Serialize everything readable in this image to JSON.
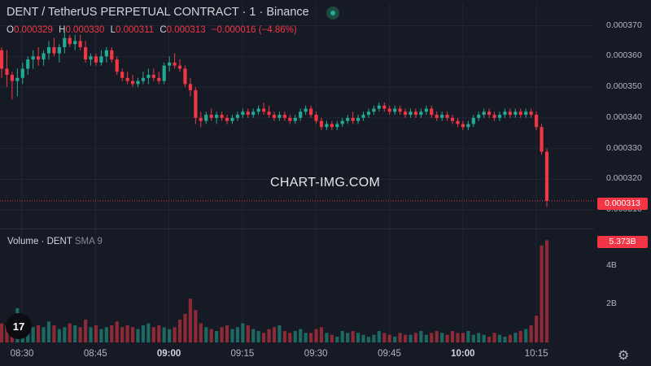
{
  "header": {
    "title": "DENT / TetherUS PERPETUAL CONTRACT · 1 · Binance",
    "ohlc": {
      "o_label": "O",
      "o": "0.000329",
      "h_label": "H",
      "h": "0.000330",
      "l_label": "L",
      "l": "0.000311",
      "c_label": "C",
      "c": "0.000313",
      "change": "−0.000016 (−4.86%)"
    }
  },
  "watermark": "CHART-IMG.COM",
  "volume_pane": {
    "label": "Volume · DENT",
    "indicator": "SMA 9",
    "last_value_tag": "5.373B"
  },
  "price_tag": "0.000313",
  "x_ticks": [
    "08:30",
    "08:45",
    "09:00",
    "09:15",
    "09:30",
    "09:45",
    "10:00",
    "10:15"
  ],
  "colors": {
    "up": "#22ab94",
    "down": "#f23645",
    "background": "#161a25",
    "grid": "#232632"
  },
  "icons": {
    "logo": "tradingview-logo-icon",
    "settings": "gear-icon",
    "live": "live-status-dot-icon"
  },
  "chart_data": {
    "type": "candlestick",
    "title": "DENT / TetherUS PERPETUAL CONTRACT · 1 · Binance",
    "interval": "1 minute",
    "x_start": "08:28",
    "x_step_minutes": 1,
    "y_ticks": [
      "0.000370",
      "0.000360",
      "0.000350",
      "0.000340",
      "0.000330",
      "0.000320",
      "0.000310"
    ],
    "ylim": [
      0.000309,
      0.000372
    ],
    "last_price": 0.000313,
    "candles": [
      [
        0.000362,
        0.000363,
        0.000353,
        0.000356
      ],
      [
        0.000356,
        0.000362,
        0.00035,
        0.000354
      ],
      [
        0.000354,
        0.000355,
        0.000346,
        0.000352
      ],
      [
        0.000352,
        0.000356,
        0.000347,
        0.000353
      ],
      [
        0.000353,
        0.000358,
        0.000351,
        0.000356
      ],
      [
        0.000356,
        0.00036,
        0.000354,
        0.000359
      ],
      [
        0.000359,
        0.000362,
        0.000356,
        0.00036
      ],
      [
        0.00036,
        0.000363,
        0.000357,
        0.000359
      ],
      [
        0.000359,
        0.000362,
        0.000357,
        0.000361
      ],
      [
        0.000361,
        0.000365,
        0.000359,
        0.000363
      ],
      [
        0.000363,
        0.000366,
        0.00036,
        0.000361
      ],
      [
        0.000361,
        0.000364,
        0.000358,
        0.000363
      ],
      [
        0.000363,
        0.000368,
        0.000361,
        0.000366
      ],
      [
        0.000366,
        0.000367,
        0.000363,
        0.000364
      ],
      [
        0.000364,
        0.000367,
        0.000362,
        0.000365
      ],
      [
        0.000365,
        0.000367,
        0.000362,
        0.000363
      ],
      [
        0.000363,
        0.000365,
        0.000358,
        0.000359
      ],
      [
        0.000359,
        0.000361,
        0.000357,
        0.00036
      ],
      [
        0.00036,
        0.000361,
        0.000357,
        0.000358
      ],
      [
        0.000358,
        0.000362,
        0.000357,
        0.00036
      ],
      [
        0.00036,
        0.000363,
        0.000358,
        0.000362
      ],
      [
        0.000362,
        0.000363,
        0.000358,
        0.000359
      ],
      [
        0.000359,
        0.00036,
        0.000354,
        0.000355
      ],
      [
        0.000355,
        0.000356,
        0.000352,
        0.000353
      ],
      [
        0.000353,
        0.000355,
        0.000351,
        0.000352
      ],
      [
        0.000352,
        0.000354,
        0.00035,
        0.000351
      ],
      [
        0.000351,
        0.000353,
        0.00035,
        0.000352
      ],
      [
        0.000352,
        0.000355,
        0.000351,
        0.000353
      ],
      [
        0.000353,
        0.000356,
        0.000351,
        0.000354
      ],
      [
        0.000354,
        0.000356,
        0.000352,
        0.000353
      ],
      [
        0.000353,
        0.000355,
        0.000351,
        0.000352
      ],
      [
        0.000352,
        0.000358,
        0.000351,
        0.000357
      ],
      [
        0.000357,
        0.00036,
        0.000355,
        0.000358
      ],
      [
        0.000358,
        0.000361,
        0.000356,
        0.000357
      ],
      [
        0.000357,
        0.000359,
        0.000355,
        0.000356
      ],
      [
        0.000356,
        0.000357,
        0.00035,
        0.000351
      ],
      [
        0.000351,
        0.000353,
        0.000347,
        0.000349
      ],
      [
        0.000349,
        0.00035,
        0.000338,
        0.00034
      ],
      [
        0.00034,
        0.000342,
        0.000337,
        0.000339
      ],
      [
        0.000339,
        0.000342,
        0.000338,
        0.000341
      ],
      [
        0.000341,
        0.000343,
        0.000339,
        0.00034
      ],
      [
        0.00034,
        0.000342,
        0.000338,
        0.000341
      ],
      [
        0.000341,
        0.000342,
        0.000339,
        0.00034
      ],
      [
        0.00034,
        0.000341,
        0.000338,
        0.000339
      ],
      [
        0.000339,
        0.000341,
        0.000338,
        0.00034
      ],
      [
        0.00034,
        0.000342,
        0.000339,
        0.000341
      ],
      [
        0.000341,
        0.000343,
        0.00034,
        0.000342
      ],
      [
        0.000342,
        0.000343,
        0.00034,
        0.000341
      ],
      [
        0.000341,
        0.000343,
        0.00034,
        0.000342
      ],
      [
        0.000342,
        0.000344,
        0.000341,
        0.000343
      ],
      [
        0.000343,
        0.000345,
        0.000341,
        0.000342
      ],
      [
        0.000342,
        0.000344,
        0.00034,
        0.000341
      ],
      [
        0.000341,
        0.000342,
        0.000339,
        0.00034
      ],
      [
        0.00034,
        0.000342,
        0.000339,
        0.000341
      ],
      [
        0.000341,
        0.000342,
        0.000339,
        0.00034
      ],
      [
        0.00034,
        0.000341,
        0.000338,
        0.000339
      ],
      [
        0.000339,
        0.000341,
        0.000338,
        0.00034
      ],
      [
        0.00034,
        0.000343,
        0.000339,
        0.000342
      ],
      [
        0.000342,
        0.000344,
        0.000341,
        0.000343
      ],
      [
        0.000343,
        0.000344,
        0.00034,
        0.000341
      ],
      [
        0.000341,
        0.000342,
        0.000338,
        0.000339
      ],
      [
        0.000339,
        0.00034,
        0.000336,
        0.000337
      ],
      [
        0.000337,
        0.000339,
        0.000336,
        0.000338
      ],
      [
        0.000338,
        0.000339,
        0.000336,
        0.000337
      ],
      [
        0.000337,
        0.000339,
        0.000336,
        0.000338
      ],
      [
        0.000338,
        0.00034,
        0.000337,
        0.000339
      ],
      [
        0.000339,
        0.000341,
        0.000338,
        0.00034
      ],
      [
        0.00034,
        0.000342,
        0.000338,
        0.000339
      ],
      [
        0.000339,
        0.000341,
        0.000338,
        0.00034
      ],
      [
        0.00034,
        0.000342,
        0.000339,
        0.000341
      ],
      [
        0.000341,
        0.000343,
        0.00034,
        0.000342
      ],
      [
        0.000342,
        0.000344,
        0.000341,
        0.000343
      ],
      [
        0.000343,
        0.000345,
        0.000342,
        0.000344
      ],
      [
        0.000344,
        0.000345,
        0.000342,
        0.000343
      ],
      [
        0.000343,
        0.000344,
        0.000341,
        0.000342
      ],
      [
        0.000342,
        0.000344,
        0.000341,
        0.000343
      ],
      [
        0.000343,
        0.000344,
        0.000341,
        0.000342
      ],
      [
        0.000342,
        0.000343,
        0.00034,
        0.000341
      ],
      [
        0.000341,
        0.000343,
        0.00034,
        0.000342
      ],
      [
        0.000342,
        0.000343,
        0.00034,
        0.000341
      ],
      [
        0.000341,
        0.000343,
        0.00034,
        0.000342
      ],
      [
        0.000342,
        0.000344,
        0.000341,
        0.000343
      ],
      [
        0.000343,
        0.000344,
        0.00034,
        0.000341
      ],
      [
        0.000341,
        0.000342,
        0.000339,
        0.00034
      ],
      [
        0.00034,
        0.000342,
        0.000339,
        0.000341
      ],
      [
        0.000341,
        0.000342,
        0.000339,
        0.00034
      ],
      [
        0.00034,
        0.000341,
        0.000338,
        0.000339
      ],
      [
        0.000339,
        0.00034,
        0.000337,
        0.000338
      ],
      [
        0.000338,
        0.000339,
        0.000336,
        0.000337
      ],
      [
        0.000337,
        0.000339,
        0.000336,
        0.000338
      ],
      [
        0.000338,
        0.000341,
        0.000337,
        0.00034
      ],
      [
        0.00034,
        0.000342,
        0.000339,
        0.000341
      ],
      [
        0.000341,
        0.000343,
        0.00034,
        0.000342
      ],
      [
        0.000342,
        0.000343,
        0.00034,
        0.000341
      ],
      [
        0.000341,
        0.000342,
        0.000339,
        0.00034
      ],
      [
        0.00034,
        0.000342,
        0.000339,
        0.000341
      ],
      [
        0.000341,
        0.000343,
        0.00034,
        0.000342
      ],
      [
        0.000342,
        0.000343,
        0.00034,
        0.000341
      ],
      [
        0.000341,
        0.000343,
        0.00034,
        0.000342
      ],
      [
        0.000342,
        0.000343,
        0.00034,
        0.000341
      ],
      [
        0.000341,
        0.000343,
        0.00034,
        0.000342
      ],
      [
        0.000342,
        0.000343,
        0.00034,
        0.000341
      ],
      [
        0.000341,
        0.000342,
        0.000336,
        0.000337
      ],
      [
        0.000337,
        0.000338,
        0.000328,
        0.000329
      ],
      [
        0.000329,
        0.00033,
        0.000311,
        0.000313
      ]
    ],
    "volume_unit": "B",
    "volume_ticks": [
      "4B",
      "2B"
    ],
    "volumes": [
      1.0,
      0.9,
      0.9,
      1.8,
      1.2,
      1.0,
      0.8,
      0.9,
      0.8,
      1.1,
      0.9,
      0.7,
      0.8,
      1.0,
      0.9,
      0.8,
      1.2,
      0.8,
      0.9,
      0.7,
      0.8,
      0.9,
      1.1,
      0.8,
      0.9,
      0.8,
      0.7,
      0.9,
      1.0,
      0.8,
      0.9,
      0.8,
      0.7,
      0.8,
      1.2,
      1.5,
      2.3,
      1.7,
      1.0,
      0.8,
      0.7,
      0.6,
      0.8,
      0.9,
      0.7,
      0.8,
      1.0,
      0.9,
      0.7,
      0.6,
      0.5,
      0.7,
      0.8,
      0.9,
      0.6,
      0.5,
      0.6,
      0.7,
      0.5,
      0.5,
      0.7,
      0.8,
      0.5,
      0.4,
      0.3,
      0.6,
      0.5,
      0.6,
      0.5,
      0.4,
      0.3,
      0.4,
      0.6,
      0.5,
      0.4,
      0.3,
      0.5,
      0.4,
      0.4,
      0.5,
      0.6,
      0.4,
      0.5,
      0.6,
      0.5,
      0.4,
      0.6,
      0.5,
      0.5,
      0.6,
      0.4,
      0.5,
      0.4,
      0.3,
      0.5,
      0.4,
      0.3,
      0.4,
      0.5,
      0.6,
      0.7,
      0.9,
      1.4,
      5.1,
      5.373
    ]
  }
}
